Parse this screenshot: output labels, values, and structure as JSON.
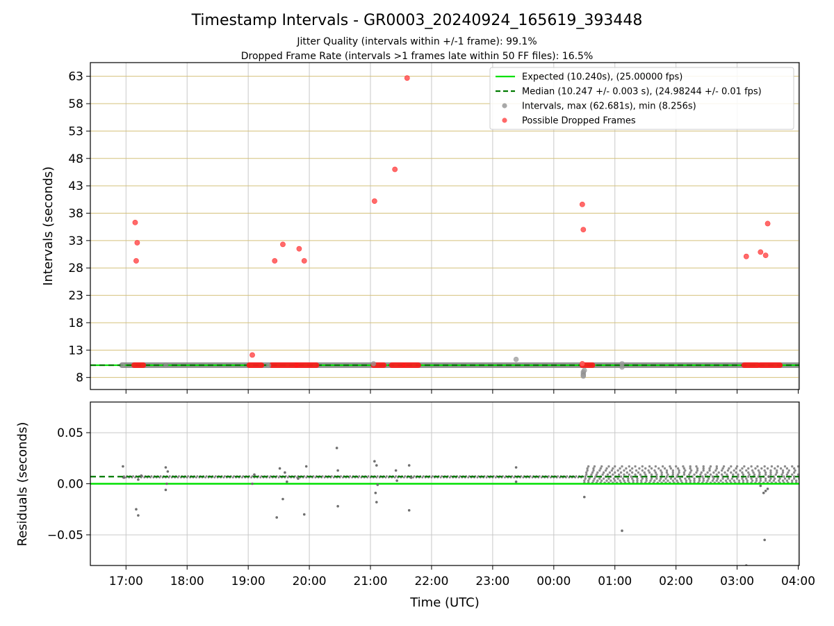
{
  "chart_data": [
    {
      "type": "scatter",
      "panel": "intervals",
      "title": "Timestamp Intervals - GR0003_20240924_165619_393448",
      "subtitle_lines": [
        "Jitter Quality (intervals within +/-1 frame): 99.1%",
        "Dropped Frame Rate (intervals >1 frames late within 50 FF files): 16.5%"
      ],
      "ylabel": "Intervals (seconds)",
      "ylim": [
        5.8,
        65.5
      ],
      "yticks": [
        8,
        13,
        18,
        23,
        28,
        33,
        38,
        43,
        48,
        53,
        58,
        63
      ],
      "xlim": [
        "2024-09-24 16:25",
        "2024-09-25 04:01"
      ],
      "grid": true,
      "legend_position": "top-right",
      "legend": [
        {
          "label": "Expected (10.240s), (25.00000 fps)",
          "style": "solid-line",
          "color": "#00e000"
        },
        {
          "label": "Median (10.247 +/- 0.003 s), (24.98244 +/- 0.01 fps)",
          "style": "dashed-line",
          "color": "#007a00"
        },
        {
          "label": "Intervals, max (62.681s), min (8.256s)",
          "style": "marker",
          "color": "#999999"
        },
        {
          "label": "Possible Dropped Frames",
          "style": "marker",
          "color": "#ff4d4d"
        }
      ],
      "expected_interval": 10.24,
      "median_interval": 10.247,
      "interval_coverage": [
        [
          "2024-09-24 16:56",
          "2024-09-25 04:01"
        ]
      ],
      "series": [
        {
          "name": "Intervals, max (62.681s), min (8.256s)",
          "points": [
            [
              "2024-09-24 16:57",
              10.25
            ],
            [
              "2024-09-24 21:03",
              10.5
            ],
            [
              "2024-09-24 23:23",
              11.3
            ],
            [
              "2024-09-25 00:29",
              9.0
            ],
            [
              "2024-09-25 00:29",
              8.7
            ],
            [
              "2024-09-25 00:29",
              8.4
            ],
            [
              "2024-09-25 00:30",
              9.3
            ],
            [
              "2024-09-25 00:29",
              8.256
            ],
            [
              "2024-09-25 01:07",
              10.5
            ],
            [
              "2024-09-25 01:07",
              9.9
            ],
            [
              "2024-09-24 17:39",
              10.2
            ],
            [
              "2024-09-24 19:20",
              10.2
            ]
          ]
        },
        {
          "name": "Possible Dropped Frames",
          "points": [
            [
              "2024-09-24 17:09",
              36.3
            ],
            [
              "2024-09-24 17:11",
              32.6
            ],
            [
              "2024-09-24 17:10",
              29.3
            ],
            [
              "2024-09-24 19:04",
              12.1
            ],
            [
              "2024-09-24 19:26",
              29.3
            ],
            [
              "2024-09-24 19:34",
              32.3
            ],
            [
              "2024-09-24 19:50",
              31.5
            ],
            [
              "2024-09-24 19:55",
              29.3
            ],
            [
              "2024-09-24 21:04",
              40.2
            ],
            [
              "2024-09-24 21:24",
              46.0
            ],
            [
              "2024-09-24 21:36",
              62.681
            ],
            [
              "2024-09-25 00:28",
              39.6
            ],
            [
              "2024-09-25 00:29",
              35.0
            ],
            [
              "2024-09-25 03:09",
              30.1
            ],
            [
              "2024-09-25 03:23",
              30.9
            ],
            [
              "2024-09-25 03:28",
              30.3
            ],
            [
              "2024-09-25 03:30",
              36.1
            ],
            [
              "2024-09-25 00:28",
              10.5
            ]
          ],
          "bands": [
            [
              "2024-09-24 17:08",
              "2024-09-24 17:17"
            ],
            [
              "2024-09-24 19:01",
              "2024-09-24 19:13"
            ],
            [
              "2024-09-24 19:23",
              "2024-09-24 19:47"
            ],
            [
              "2024-09-24 19:48",
              "2024-09-24 20:07"
            ],
            [
              "2024-09-24 21:03",
              "2024-09-24 21:13"
            ],
            [
              "2024-09-24 21:21",
              "2024-09-24 21:32"
            ],
            [
              "2024-09-24 21:34",
              "2024-09-24 21:47"
            ],
            [
              "2024-09-25 00:28",
              "2024-09-25 00:38"
            ],
            [
              "2024-09-25 03:07",
              "2024-09-25 03:20"
            ],
            [
              "2024-09-25 03:23",
              "2024-09-25 03:42"
            ]
          ],
          "band_value": 10.24
        }
      ]
    },
    {
      "type": "scatter",
      "panel": "residuals",
      "xlabel": "Time (UTC)",
      "ylabel": "Residuals (seconds)",
      "ylim": [
        -0.08,
        0.08
      ],
      "yticks": [
        -0.05,
        0.0,
        0.05
      ],
      "ytick_labels": [
        "−0.05",
        "0.00",
        "0.05"
      ],
      "xlim": [
        "2024-09-24 16:25",
        "2024-09-25 04:01"
      ],
      "xticks": [
        [
          "2024-09-24 17:00",
          "17:00"
        ],
        [
          "2024-09-24 18:00",
          "18:00"
        ],
        [
          "2024-09-24 19:00",
          "19:00"
        ],
        [
          "2024-09-24 20:00",
          "20:00"
        ],
        [
          "2024-09-24 21:00",
          "21:00"
        ],
        [
          "2024-09-24 22:00",
          "22:00"
        ],
        [
          "2024-09-24 23:00",
          "23:00"
        ],
        [
          "2024-09-25 00:00",
          "00:00"
        ],
        [
          "2024-09-25 01:00",
          "01:00"
        ],
        [
          "2024-09-25 02:00",
          "02:00"
        ],
        [
          "2024-09-25 03:00",
          "03:00"
        ],
        [
          "2024-09-25 04:00",
          "04:00"
        ]
      ],
      "grid": true,
      "expected_residual": 0.0,
      "median_residual": 0.007,
      "dense_band": {
        "x_range": [
          "2024-09-25 00:30",
          "2024-09-25 04:01"
        ],
        "y_range": [
          0.001,
          0.017
        ]
      },
      "series": [
        {
          "name": "Residuals",
          "points": [
            [
              "2024-09-24 16:57",
              0.017
            ],
            [
              "2024-09-24 16:58",
              0.006
            ],
            [
              "2024-09-24 17:10",
              -0.025
            ],
            [
              "2024-09-24 17:12",
              -0.031
            ],
            [
              "2024-09-24 17:12",
              0.004
            ],
            [
              "2024-09-24 17:15",
              0.008
            ],
            [
              "2024-09-24 17:39",
              0.016
            ],
            [
              "2024-09-24 17:39",
              -0.006
            ],
            [
              "2024-09-24 17:40",
              0.0
            ],
            [
              "2024-09-24 17:41",
              0.012
            ],
            [
              "2024-09-24 19:04",
              0.0
            ],
            [
              "2024-09-24 19:06",
              0.009
            ],
            [
              "2024-09-24 19:28",
              -0.033
            ],
            [
              "2024-09-24 19:31",
              0.015
            ],
            [
              "2024-09-24 19:34",
              -0.015
            ],
            [
              "2024-09-24 19:36",
              0.011
            ],
            [
              "2024-09-24 19:38",
              0.002
            ],
            [
              "2024-09-24 19:49",
              0.005
            ],
            [
              "2024-09-24 19:55",
              -0.03
            ],
            [
              "2024-09-24 19:57",
              0.017
            ],
            [
              "2024-09-24 20:27",
              0.035
            ],
            [
              "2024-09-24 20:28",
              0.013
            ],
            [
              "2024-09-24 20:28",
              -0.022
            ],
            [
              "2024-09-24 21:04",
              0.022
            ],
            [
              "2024-09-24 21:05",
              -0.009
            ],
            [
              "2024-09-24 21:06",
              -0.018
            ],
            [
              "2024-09-24 21:06",
              0.018
            ],
            [
              "2024-09-24 21:07",
              -0.001
            ],
            [
              "2024-09-24 21:25",
              0.013
            ],
            [
              "2024-09-24 21:26",
              0.003
            ],
            [
              "2024-09-24 21:38",
              0.018
            ],
            [
              "2024-09-24 21:38",
              -0.026
            ],
            [
              "2024-09-24 21:40",
              0.006
            ],
            [
              "2024-09-24 23:23",
              0.016
            ],
            [
              "2024-09-24 23:23",
              0.002
            ],
            [
              "2024-09-25 00:30",
              -0.013
            ],
            [
              "2024-09-25 01:07",
              -0.046
            ],
            [
              "2024-09-25 03:09",
              -0.08
            ],
            [
              "2024-09-25 03:27",
              -0.055
            ],
            [
              "2024-09-25 03:23",
              -0.002
            ],
            [
              "2024-09-25 03:26",
              -0.009
            ],
            [
              "2024-09-25 03:28",
              -0.007
            ],
            [
              "2024-09-25 03:30",
              -0.005
            ],
            [
              "2024-09-25 03:31",
              0.007
            ]
          ]
        }
      ]
    }
  ]
}
